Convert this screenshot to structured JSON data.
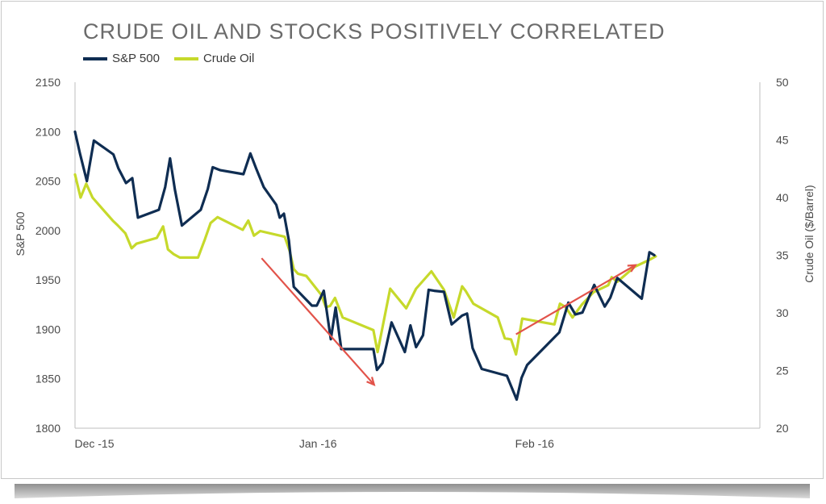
{
  "chart_data": {
    "type": "line",
    "title": "CRUDE OIL AND STOCKS POSITIVELY CORRELATED",
    "ylabel": "S&P 500",
    "y2label": "Crude Oil ($/Barrel)",
    "ylim": [
      1800,
      2150
    ],
    "y2lim": [
      20,
      50
    ],
    "yticks": [
      "2150",
      "2100",
      "2050",
      "2000",
      "1950",
      "1900",
      "1850",
      "1800"
    ],
    "y2ticks": [
      "50",
      "45",
      "40",
      "35",
      "30",
      "25",
      "20"
    ],
    "xticks": [
      {
        "label": "Dec -15",
        "day": 0
      },
      {
        "label": "Jan -16",
        "day": 32
      },
      {
        "label": "Feb -16",
        "day": 63
      }
    ],
    "colors": {
      "sp500": "#0f2d52",
      "crude": "#c6d92b",
      "arrow": "#e2534a"
    },
    "series": [
      {
        "name": "S&P 500",
        "axis": "left",
        "x": [
          0,
          0.7,
          1.7,
          2.7,
          5.5,
          6.2,
          7.3,
          8.2,
          9,
          12,
          12.9,
          13.6,
          14.3,
          15.3,
          18,
          19,
          19.7,
          20.8,
          24.1,
          25.1,
          25.9,
          27,
          28.8,
          29.3,
          29.9,
          30.6,
          31.3,
          33.9,
          34.6,
          35.6,
          36.6,
          37.3,
          38.1,
          40.5,
          42.7,
          43.2,
          44,
          45.3,
          47.2,
          48,
          48.8,
          49.8,
          50.6,
          51.4,
          52.8,
          53.9,
          55.4,
          56.1,
          56.9,
          58.2,
          61.8,
          63.2,
          63.9,
          64.7,
          69.3,
          70.6,
          71.6,
          72.6,
          74.3,
          75.8,
          76.6,
          77.6,
          81.1,
          82.2,
          82.9
        ],
        "values": [
          2100,
          2078,
          2050,
          2091,
          2077,
          2063,
          2048,
          2053,
          2013,
          2021,
          2044,
          2073,
          2041,
          2005,
          2021,
          2042,
          2064,
          2061,
          2057,
          2078,
          2063,
          2044,
          2026,
          2013,
          2017,
          1990,
          1943,
          1924,
          1924,
          1939,
          1890,
          1922,
          1880,
          1880,
          1880,
          1859,
          1866,
          1907,
          1877,
          1904,
          1882,
          1894,
          1940,
          1939,
          1938,
          1905,
          1914,
          1916,
          1881,
          1860,
          1853,
          1829,
          1851,
          1864,
          1897,
          1927,
          1915,
          1917,
          1945,
          1923,
          1932,
          1952,
          1931,
          1978,
          1975
        ]
      },
      {
        "name": "Crude Oil",
        "axis": "right",
        "x": [
          0,
          0.8,
          1.6,
          2.5,
          5.4,
          6.1,
          7.2,
          8.1,
          8.8,
          11.7,
          12.6,
          13.3,
          14.1,
          15,
          17.6,
          18.6,
          19.4,
          20.4,
          24,
          24.8,
          25.6,
          26.5,
          30,
          30.7,
          31.3,
          31.9,
          33.1,
          35.2,
          35.9,
          36.5,
          37.2,
          38.3,
          42.7,
          43.3,
          45.1,
          47.4,
          48.8,
          51,
          52.8,
          54.2,
          55.4,
          55.9,
          57,
          60.5,
          61.5,
          62.4,
          63.1,
          64,
          68.6,
          69.4,
          70.2,
          71.2,
          72.5,
          74.2,
          76.3,
          76.8,
          77.6,
          80.1,
          82.2,
          83.1
        ],
        "values": [
          42,
          40,
          41.2,
          40,
          38,
          37.6,
          36.9,
          35.6,
          36,
          36.5,
          37.5,
          35.5,
          35.1,
          34.8,
          34.8,
          36.4,
          37.8,
          38.3,
          37.2,
          38,
          36.7,
          37.1,
          36.6,
          35.4,
          33.8,
          33.4,
          33.2,
          31.6,
          30.5,
          30.6,
          31.3,
          29.6,
          28.5,
          26.6,
          32.1,
          30.4,
          32.1,
          33.6,
          32,
          29.6,
          32.3,
          31.9,
          30.8,
          29.6,
          27.8,
          27.7,
          26.4,
          29.5,
          29,
          30.8,
          30.5,
          29.6,
          30.7,
          31.8,
          32.4,
          33.1,
          32.7,
          34,
          34.6,
          34.9
        ]
      }
    ],
    "annotations": [
      {
        "type": "arrow",
        "direction": "down",
        "from": {
          "day": 26.7,
          "sp500": 1972
        },
        "to": {
          "day": 42.8,
          "sp500": 1844
        }
      },
      {
        "type": "arrow",
        "direction": "up",
        "from": {
          "day": 63.1,
          "sp500": 1895
        },
        "to": {
          "day": 80.2,
          "sp500": 1965
        }
      }
    ]
  }
}
